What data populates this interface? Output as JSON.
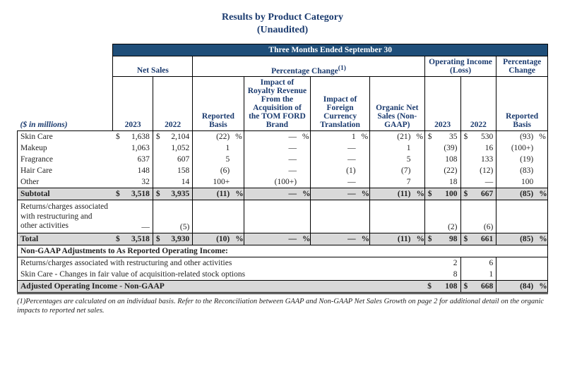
{
  "title_line1": "Results by Product Category",
  "title_line2": "(Unaudited)",
  "banner": "Three Months Ended September 30",
  "groups": {
    "net_sales": "Net Sales",
    "pct_change": "Percentage Change",
    "pct_change_sup": "(1)",
    "op_income": "Operating Income (Loss)",
    "pct_change2": "Percentage Change"
  },
  "cols": {
    "y2023": "2023",
    "y2022": "2022",
    "reported": "Reported Basis",
    "royalty": "Impact of Royalty Revenue From the Acquisition of the TOM FORD Brand",
    "fx": "Impact of Foreign Currency Translation",
    "organic": "Organic Net Sales (Non-GAAP)",
    "reported2": "Reported Basis"
  },
  "unit_label": "($ in millions)",
  "rows": [
    {
      "label": "Skin Care",
      "ns23": "1,638",
      "ns22": "2,104",
      "rep": "(22)",
      "roy": "—",
      "fx": "1",
      "org": "(21)",
      "oi23": "35",
      "oi22": "530",
      "rep2": "(93)",
      "first": true
    },
    {
      "label": "Makeup",
      "ns23": "1,063",
      "ns22": "1,052",
      "rep": "1",
      "roy": "—",
      "fx": "—",
      "org": "1",
      "oi23": "(39)",
      "oi22": "16",
      "rep2": "(100+)"
    },
    {
      "label": "Fragrance",
      "ns23": "637",
      "ns22": "607",
      "rep": "5",
      "roy": "—",
      "fx": "—",
      "org": "5",
      "oi23": "108",
      "oi22": "133",
      "rep2": "(19)"
    },
    {
      "label": "Hair Care",
      "ns23": "148",
      "ns22": "158",
      "rep": "(6)",
      "roy": "—",
      "fx": "(1)",
      "org": "(7)",
      "oi23": "(22)",
      "oi22": "(12)",
      "rep2": "(83)"
    },
    {
      "label": "Other",
      "ns23": "32",
      "ns22": "14",
      "rep": "100+",
      "roy": "(100+)",
      "fx": "—",
      "org": "7",
      "oi23": "18",
      "oi22": "—",
      "rep2": "100",
      "last": true
    }
  ],
  "subtotal": {
    "label": "Subtotal",
    "ns23": "3,518",
    "ns22": "3,935",
    "rep": "(11)",
    "roy": "—",
    "fx": "—",
    "org": "(11)",
    "oi23": "100",
    "oi22": "667",
    "rep2": "(85)"
  },
  "returns_row": {
    "label": "Returns/charges associated with restructuring and other activities",
    "ns23": "—",
    "ns22": "(5)",
    "oi23": "(2)",
    "oi22": "(6)"
  },
  "total": {
    "label": "Total",
    "ns23": "3,518",
    "ns22": "3,930",
    "rep": "(10)",
    "roy": "—",
    "fx": "—",
    "org": "(11)",
    "oi23": "98",
    "oi22": "661",
    "rep2": "(85)"
  },
  "nongaap_header": "Non-GAAP Adjustments to As Reported Operating Income:",
  "adj_rows": [
    {
      "label": "Returns/charges associated with restructuring and other activities",
      "oi23": "2",
      "oi22": "6"
    },
    {
      "label": "Skin Care - Changes in fair value of acquisition-related stock options",
      "oi23": "8",
      "oi22": "1",
      "last": true
    }
  ],
  "adjusted": {
    "label": "Adjusted Operating Income - Non-GAAP",
    "oi23": "108",
    "oi22": "668",
    "rep2": "(84)"
  },
  "footnote": "(1)Percentages are calculated on an individual basis. Refer to the Reconciliation between GAAP and Non-GAAP Net Sales Growth on page 2 for additional detail on the organic impacts to reported net sales.",
  "colors": {
    "banner_bg": "#1f4e79",
    "heading_text": "#1a3a6e",
    "shade_bg": "#d9d9d9",
    "border": "#000000"
  }
}
